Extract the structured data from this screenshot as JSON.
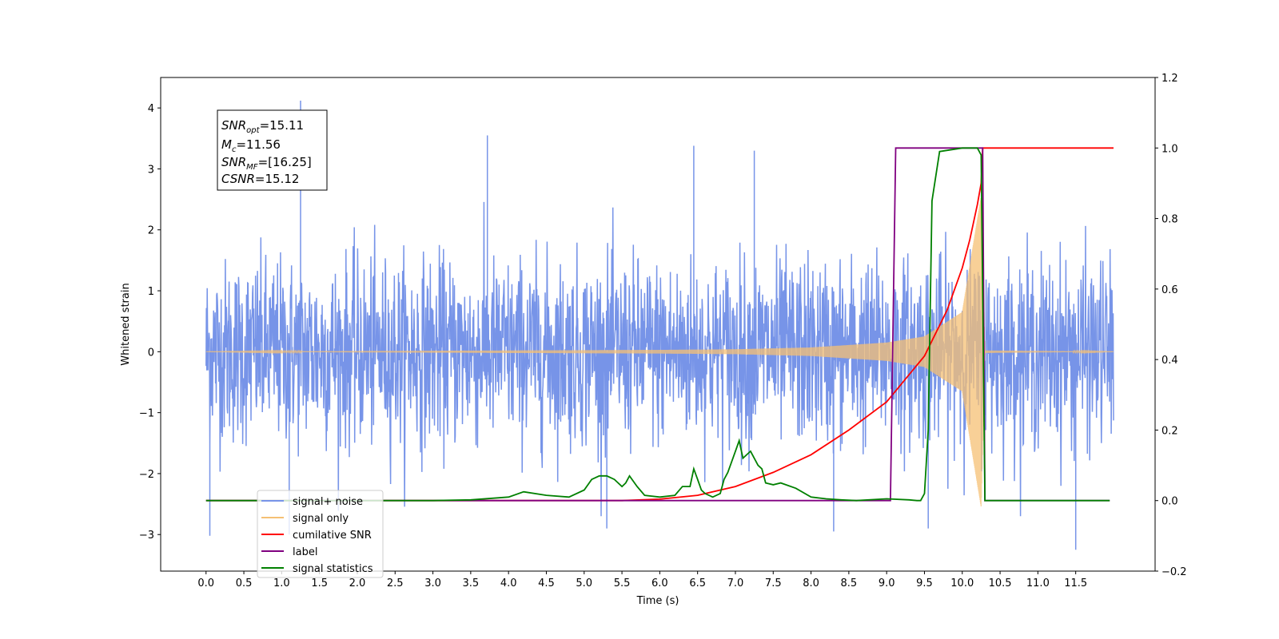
{
  "chart_data": {
    "type": "line",
    "xlabel": "Time (s)",
    "ylabel": "Whitened strain",
    "xlim": [
      -0.6,
      12.55
    ],
    "ylim": [
      -3.6,
      4.5
    ],
    "y2lim": [
      -0.2,
      1.2
    ],
    "x_ticks": [
      0.0,
      0.5,
      1.0,
      1.5,
      2.0,
      2.5,
      3.0,
      3.5,
      4.0,
      4.5,
      5.0,
      5.5,
      6.0,
      6.5,
      7.0,
      7.5,
      8.0,
      8.5,
      9.0,
      9.5,
      10.0,
      10.5,
      11.0,
      11.5
    ],
    "x_tick_labels": [
      "0.0",
      "0.5",
      "1.0",
      "1.5",
      "2.0",
      "2.5",
      "3.0",
      "3.5",
      "4.0",
      "4.5",
      "5.0",
      "5.5",
      "6.0",
      "6.5",
      "7.0",
      "7.5",
      "8.0",
      "8.5",
      "9.0",
      "9.5",
      "10.0",
      "10.5",
      "11.0",
      "11.5"
    ],
    "y_ticks": [
      -3,
      -2,
      -1,
      0,
      1,
      2,
      3,
      4
    ],
    "y_tick_labels": [
      "−3",
      "−2",
      "−1",
      "0",
      "1",
      "2",
      "3",
      "4"
    ],
    "y2_ticks": [
      -0.2,
      0.0,
      0.2,
      0.4,
      0.6,
      0.8,
      1.0,
      1.2
    ],
    "y2_tick_labels": [
      "−0.2",
      "0.0",
      "0.2",
      "0.4",
      "0.6",
      "0.8",
      "1.0",
      "1.2"
    ],
    "legend_position": "lower-left",
    "grid": false,
    "annotation": {
      "snr_opt": {
        "symbol": "SNR",
        "sub": "opt",
        "value": "=15.11"
      },
      "mc": {
        "symbol": "M",
        "sub": "c",
        "value": "=11.56"
      },
      "snr_mf": {
        "symbol": "SNR",
        "sub": "MF",
        "value": "=[16.25]"
      },
      "csnr": {
        "symbol": "CSNR",
        "sub": "",
        "value": "=15.12"
      }
    },
    "series": [
      {
        "name": "signal+ noise",
        "color": "#7794e8",
        "axis": "left",
        "style": "noise",
        "x_range": [
          0.0,
          12.0
        ],
        "amplitude_std": 0.75,
        "peaks": [
          [
            1.25,
            4.12
          ],
          [
            3.72,
            3.55
          ],
          [
            6.45,
            3.38
          ],
          [
            7.25,
            3.3
          ],
          [
            1.1,
            -3.0
          ],
          [
            0.05,
            -3.02
          ],
          [
            11.5,
            -3.25
          ],
          [
            9.55,
            -2.9
          ],
          [
            5.3,
            -2.9
          ],
          [
            8.3,
            -2.95
          ]
        ]
      },
      {
        "name": "signal only",
        "color": "#f5c074",
        "axis": "left",
        "style": "chirp",
        "x_range": [
          0.0,
          12.0
        ],
        "chirp_points": [
          [
            0.0,
            0.0
          ],
          [
            6.0,
            0.03
          ],
          [
            7.0,
            0.04
          ],
          [
            8.0,
            0.07
          ],
          [
            9.0,
            0.15
          ],
          [
            9.5,
            0.25
          ],
          [
            10.0,
            0.65
          ],
          [
            10.25,
            2.55
          ],
          [
            10.3,
            0.02
          ],
          [
            12.0,
            0.0
          ]
        ]
      },
      {
        "name": "cumilative SNR",
        "color": "#ff0000",
        "axis": "right",
        "x": [
          0.0,
          5.5,
          6.0,
          6.5,
          7.0,
          7.5,
          8.0,
          8.5,
          9.0,
          9.5,
          9.8,
          10.0,
          10.1,
          10.2,
          10.25,
          10.27,
          12.0
        ],
        "values": [
          0.0,
          0.0,
          0.004,
          0.015,
          0.04,
          0.08,
          0.13,
          0.2,
          0.28,
          0.41,
          0.54,
          0.66,
          0.74,
          0.84,
          0.9,
          1.0,
          1.0
        ]
      },
      {
        "name": "label",
        "color": "#800080",
        "axis": "right",
        "x": [
          0.0,
          9.05,
          9.12,
          10.27,
          10.3,
          11.95
        ],
        "values": [
          0.0,
          0.0,
          1.0,
          1.0,
          0.0,
          0.0
        ]
      },
      {
        "name": "signal statistics",
        "color": "#008000",
        "axis": "right",
        "x": [
          0.0,
          3.0,
          3.5,
          4.0,
          4.2,
          4.5,
          4.8,
          5.0,
          5.1,
          5.2,
          5.3,
          5.4,
          5.5,
          5.55,
          5.6,
          5.7,
          5.8,
          6.0,
          6.2,
          6.3,
          6.4,
          6.45,
          6.5,
          6.55,
          6.6,
          6.7,
          6.8,
          6.85,
          6.9,
          7.0,
          7.05,
          7.1,
          7.2,
          7.3,
          7.35,
          7.4,
          7.5,
          7.6,
          7.8,
          8.0,
          8.2,
          8.4,
          8.6,
          9.0,
          9.3,
          9.4,
          9.45,
          9.5,
          9.55,
          9.6,
          9.7,
          10.0,
          10.2,
          10.25,
          10.3,
          11.95
        ],
        "values": [
          0.0,
          0.0,
          0.002,
          0.01,
          0.025,
          0.015,
          0.01,
          0.03,
          0.06,
          0.07,
          0.07,
          0.06,
          0.04,
          0.05,
          0.07,
          0.04,
          0.015,
          0.01,
          0.015,
          0.04,
          0.04,
          0.09,
          0.06,
          0.03,
          0.02,
          0.01,
          0.02,
          0.06,
          0.08,
          0.14,
          0.17,
          0.12,
          0.14,
          0.1,
          0.09,
          0.05,
          0.045,
          0.05,
          0.035,
          0.01,
          0.005,
          0.002,
          0.0,
          0.005,
          0.002,
          0.0,
          0.0,
          0.02,
          0.2,
          0.85,
          0.99,
          1.0,
          1.0,
          0.98,
          0.0,
          0.0
        ]
      }
    ]
  }
}
